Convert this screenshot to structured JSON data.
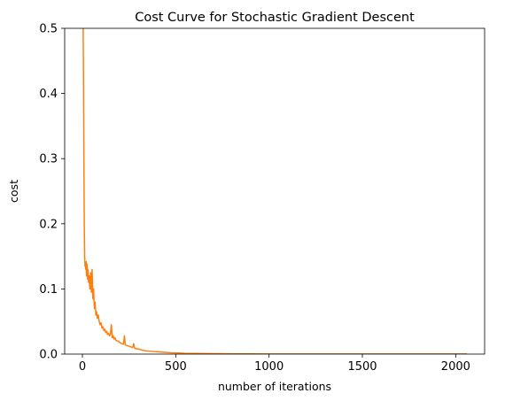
{
  "chart_data": {
    "type": "line",
    "title": "Cost Curve for Stochastic Gradient Descent",
    "xlabel": "number of iterations",
    "ylabel": "cost",
    "xlim": [
      -95,
      2155
    ],
    "ylim": [
      0,
      0.5
    ],
    "x_ticks": [
      0,
      500,
      1000,
      1500,
      2000
    ],
    "y_ticks": [
      0.0,
      0.1,
      0.2,
      0.3,
      0.4,
      0.5
    ],
    "grid": false,
    "legend": "none",
    "series": [
      {
        "color": "#ff7f0e",
        "x": [
          0,
          2,
          4,
          6,
          8,
          10,
          12,
          14,
          16,
          18,
          20,
          22,
          25,
          28,
          30,
          33,
          36,
          40,
          44,
          48,
          52,
          56,
          60,
          64,
          68,
          72,
          76,
          80,
          85,
          90,
          95,
          100,
          105,
          110,
          115,
          120,
          125,
          130,
          135,
          140,
          145,
          150,
          155,
          160,
          165,
          170,
          175,
          180,
          190,
          200,
          210,
          220,
          225,
          230,
          240,
          250,
          260,
          270,
          275,
          280,
          290,
          300,
          320,
          340,
          360,
          380,
          400,
          425,
          450,
          475,
          500,
          550,
          600,
          650,
          700,
          800,
          900,
          1000,
          1200,
          1400,
          1600,
          1800,
          2000,
          2060
        ],
        "y": [
          0.5,
          0.5,
          0.5,
          0.42,
          0.3,
          0.2,
          0.15,
          0.135,
          0.14,
          0.13,
          0.142,
          0.12,
          0.138,
          0.115,
          0.13,
          0.11,
          0.12,
          0.1,
          0.125,
          0.095,
          0.13,
          0.085,
          0.1,
          0.07,
          0.08,
          0.06,
          0.065,
          0.055,
          0.06,
          0.05,
          0.045,
          0.048,
          0.04,
          0.042,
          0.036,
          0.038,
          0.033,
          0.035,
          0.03,
          0.032,
          0.028,
          0.03,
          0.045,
          0.025,
          0.028,
          0.023,
          0.025,
          0.021,
          0.02,
          0.018,
          0.016,
          0.015,
          0.028,
          0.014,
          0.013,
          0.012,
          0.011,
          0.01,
          0.016,
          0.009,
          0.008,
          0.008,
          0.006,
          0.005,
          0.0045,
          0.004,
          0.0035,
          0.003,
          0.0025,
          0.002,
          0.0018,
          0.0012,
          0.001,
          0.0008,
          0.0006,
          0.0004,
          0.0003,
          0.0002,
          0.0002,
          0.0001,
          0.0001,
          0.0001,
          0.0001,
          0.0001
        ]
      }
    ]
  }
}
